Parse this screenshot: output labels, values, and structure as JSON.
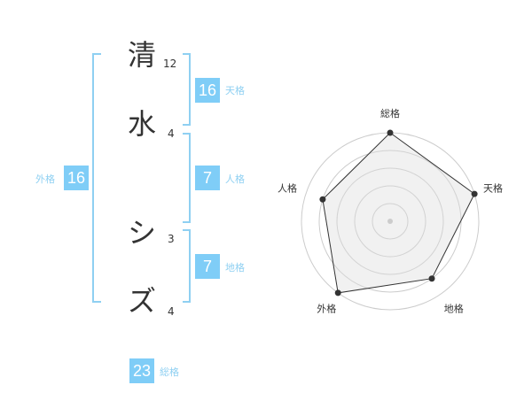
{
  "name": {
    "chars": [
      {
        "char": "清",
        "strokes": "12"
      },
      {
        "char": "水",
        "strokes": "4"
      },
      {
        "char": "シ",
        "strokes": "3"
      },
      {
        "char": "ズ",
        "strokes": "4"
      }
    ]
  },
  "kaku": {
    "tenkaku": {
      "label": "天格",
      "value": "16"
    },
    "jinkaku": {
      "label": "人格",
      "value": "7"
    },
    "chikaku": {
      "label": "地格",
      "value": "7"
    },
    "gaikaku": {
      "label": "外格",
      "value": "16"
    },
    "soukaku": {
      "label": "総格",
      "value": "23"
    }
  },
  "colors": {
    "accent": "#7fcdf7",
    "label": "#8fd0f2"
  },
  "chart_data": {
    "type": "radar",
    "axes": [
      "総格",
      "天格",
      "地格",
      "外格",
      "人格"
    ],
    "values": [
      5,
      5,
      4,
      5,
      4
    ],
    "range": [
      0,
      5
    ],
    "rings": 5
  }
}
